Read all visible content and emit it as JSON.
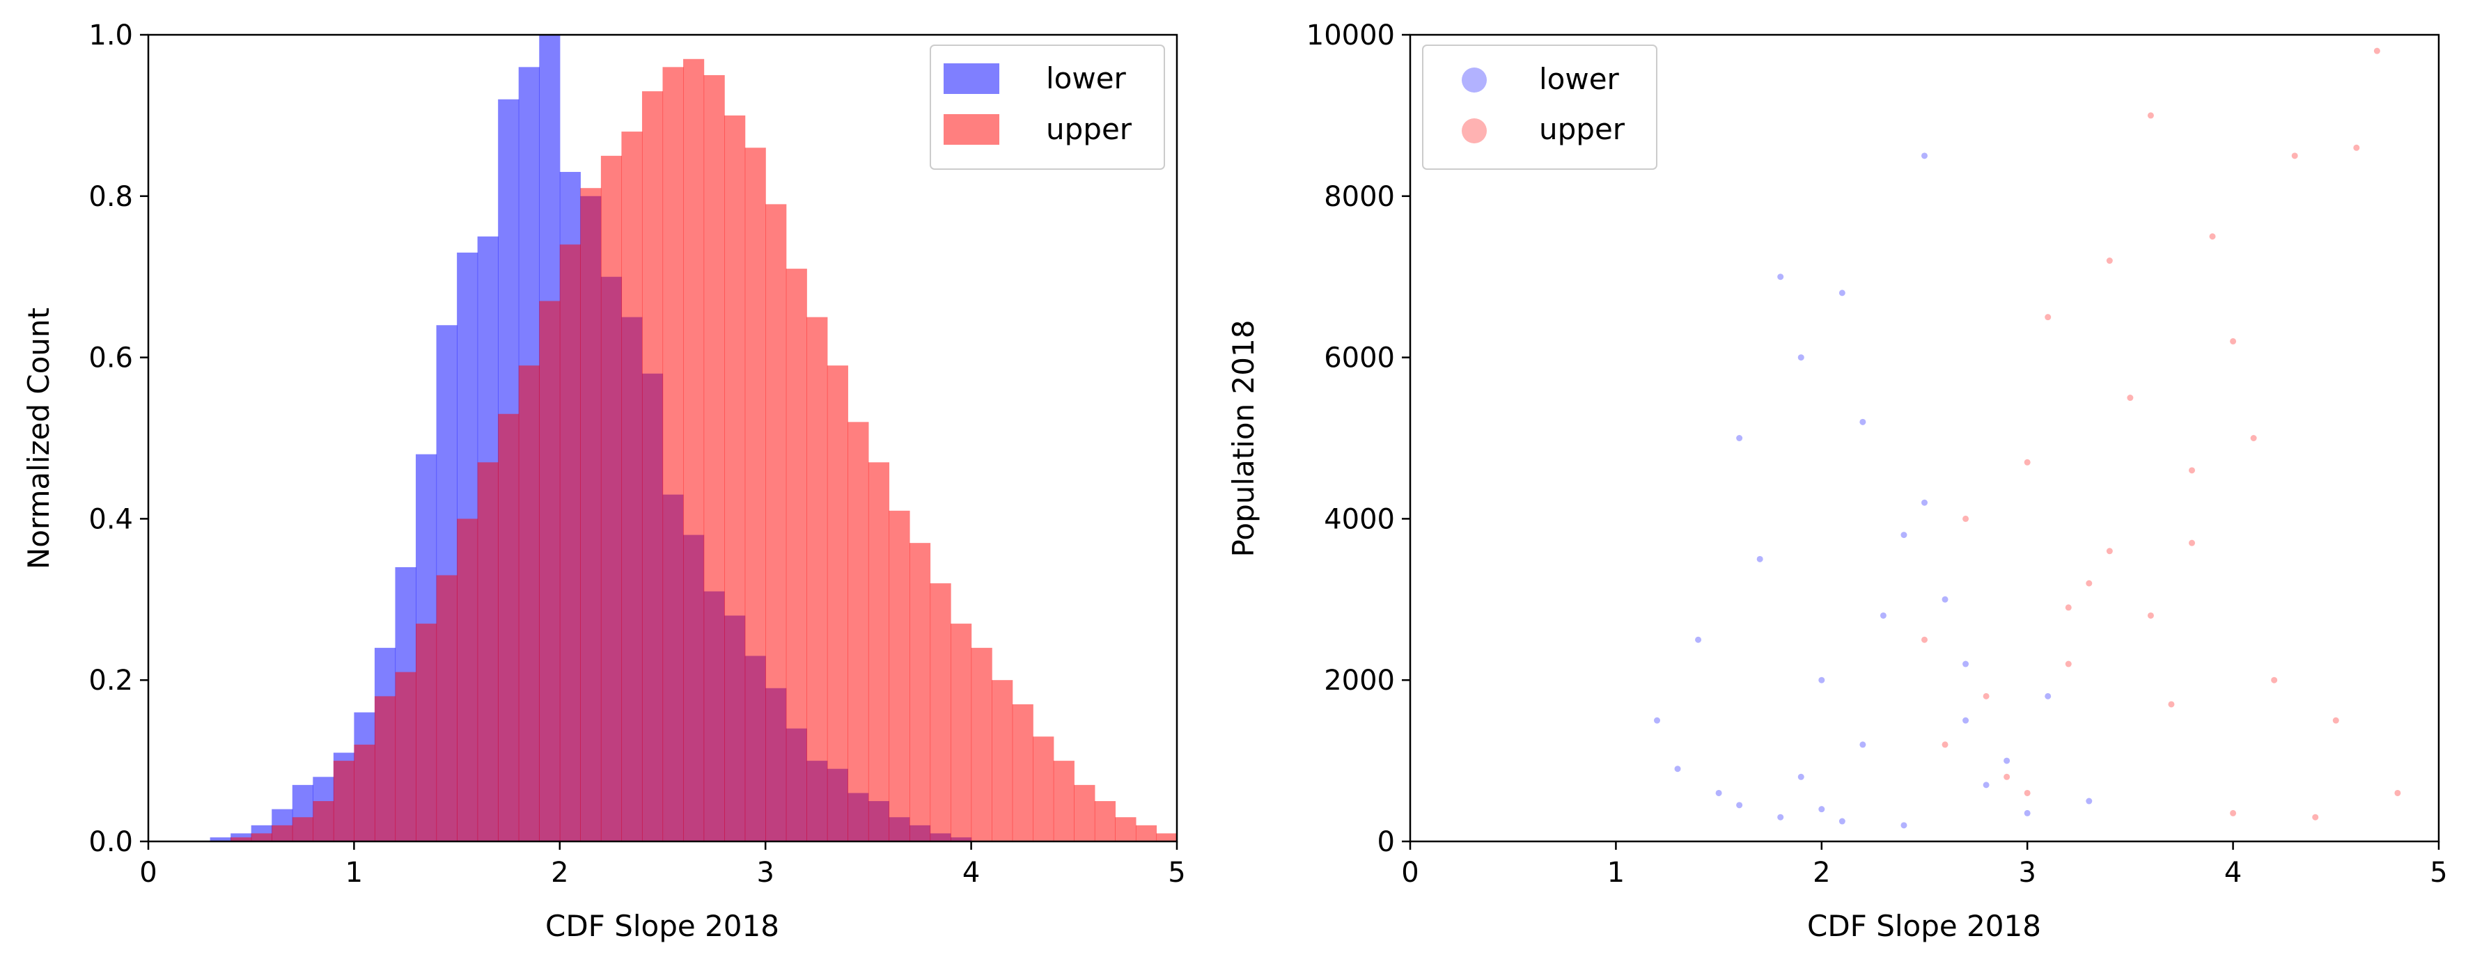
{
  "chart_data": [
    {
      "type": "histogram",
      "xlabel": "CDF Slope 2018",
      "ylabel": "Normalized Count",
      "xlim": [
        0,
        5
      ],
      "ylim": [
        0,
        1.0
      ],
      "xticks": [
        "0",
        "1",
        "2",
        "3",
        "4",
        "5"
      ],
      "yticks": [
        "0.0",
        "0.2",
        "0.4",
        "0.6",
        "0.8",
        "1.0"
      ],
      "grid": false,
      "legend_position": "top-right",
      "bin_start": 0.3,
      "bin_width": 0.1,
      "series": [
        {
          "name": "lower",
          "color": "#0000ff",
          "alpha": 0.5,
          "values": [
            0.005,
            0.01,
            0.02,
            0.04,
            0.07,
            0.08,
            0.11,
            0.16,
            0.24,
            0.34,
            0.48,
            0.64,
            0.73,
            0.75,
            0.92,
            0.96,
            1.0,
            0.83,
            0.8,
            0.7,
            0.65,
            0.58,
            0.43,
            0.38,
            0.31,
            0.28,
            0.23,
            0.19,
            0.14,
            0.1,
            0.09,
            0.06,
            0.05,
            0.03,
            0.02,
            0.01,
            0.005,
            0.0
          ]
        },
        {
          "name": "upper",
          "color": "#ff0000",
          "alpha": 0.5,
          "values": [
            0.0,
            0.005,
            0.01,
            0.02,
            0.03,
            0.05,
            0.1,
            0.12,
            0.18,
            0.21,
            0.27,
            0.33,
            0.4,
            0.47,
            0.53,
            0.59,
            0.67,
            0.74,
            0.81,
            0.85,
            0.88,
            0.93,
            0.96,
            0.97,
            0.95,
            0.9,
            0.86,
            0.79,
            0.71,
            0.65,
            0.59,
            0.52,
            0.47,
            0.41,
            0.37,
            0.32,
            0.27,
            0.24,
            0.2,
            0.17,
            0.13,
            0.1,
            0.07,
            0.05,
            0.03,
            0.02,
            0.01
          ]
        }
      ]
    },
    {
      "type": "scatter",
      "xlabel": "CDF Slope 2018",
      "ylabel": "Population 2018",
      "xlim": [
        0,
        5
      ],
      "ylim": [
        0,
        10000
      ],
      "xticks": [
        "0",
        "1",
        "2",
        "3",
        "4",
        "5"
      ],
      "yticks": [
        "0",
        "2000",
        "4000",
        "6000",
        "8000",
        "10000"
      ],
      "grid": false,
      "legend_position": "top-left",
      "series": [
        {
          "name": "lower",
          "color": "#0000ff",
          "alpha": 0.3,
          "x": [
            1.8,
            2.1,
            2.4,
            1.6,
            1.9,
            2.2,
            2.7,
            1.5,
            2.0,
            2.3,
            1.7,
            2.5,
            2.9,
            1.4,
            2.2,
            2.6,
            1.9,
            2.8,
            3.1,
            1.2,
            2.0,
            2.4,
            1.8,
            3.3,
            1.6,
            2.1,
            2.7,
            1.3,
            2.5,
            3.0
          ],
          "y": [
            300,
            250,
            200,
            450,
            800,
            1200,
            1500,
            600,
            2000,
            2800,
            3500,
            4200,
            1000,
            2500,
            5200,
            3000,
            6000,
            700,
            1800,
            1500,
            400,
            3800,
            7000,
            500,
            5000,
            6800,
            2200,
            900,
            8500,
            350
          ]
        },
        {
          "name": "upper",
          "color": "#ff0000",
          "alpha": 0.3,
          "x": [
            2.8,
            3.2,
            3.6,
            4.0,
            4.4,
            3.0,
            3.4,
            3.8,
            4.2,
            2.6,
            3.1,
            3.5,
            3.9,
            4.3,
            4.7,
            2.9,
            3.3,
            3.7,
            4.1,
            2.5,
            3.0,
            3.6,
            4.5,
            2.7,
            3.4,
            4.0,
            4.8,
            3.2,
            3.8,
            4.6
          ],
          "y": [
            1800,
            2200,
            2800,
            350,
            300,
            4700,
            3600,
            4600,
            2000,
            1200,
            6500,
            5500,
            7500,
            8500,
            9800,
            800,
            3200,
            1700,
            5000,
            2500,
            600,
            9000,
            1500,
            4000,
            7200,
            6200,
            600,
            2900,
            3700,
            8600
          ]
        }
      ]
    }
  ]
}
